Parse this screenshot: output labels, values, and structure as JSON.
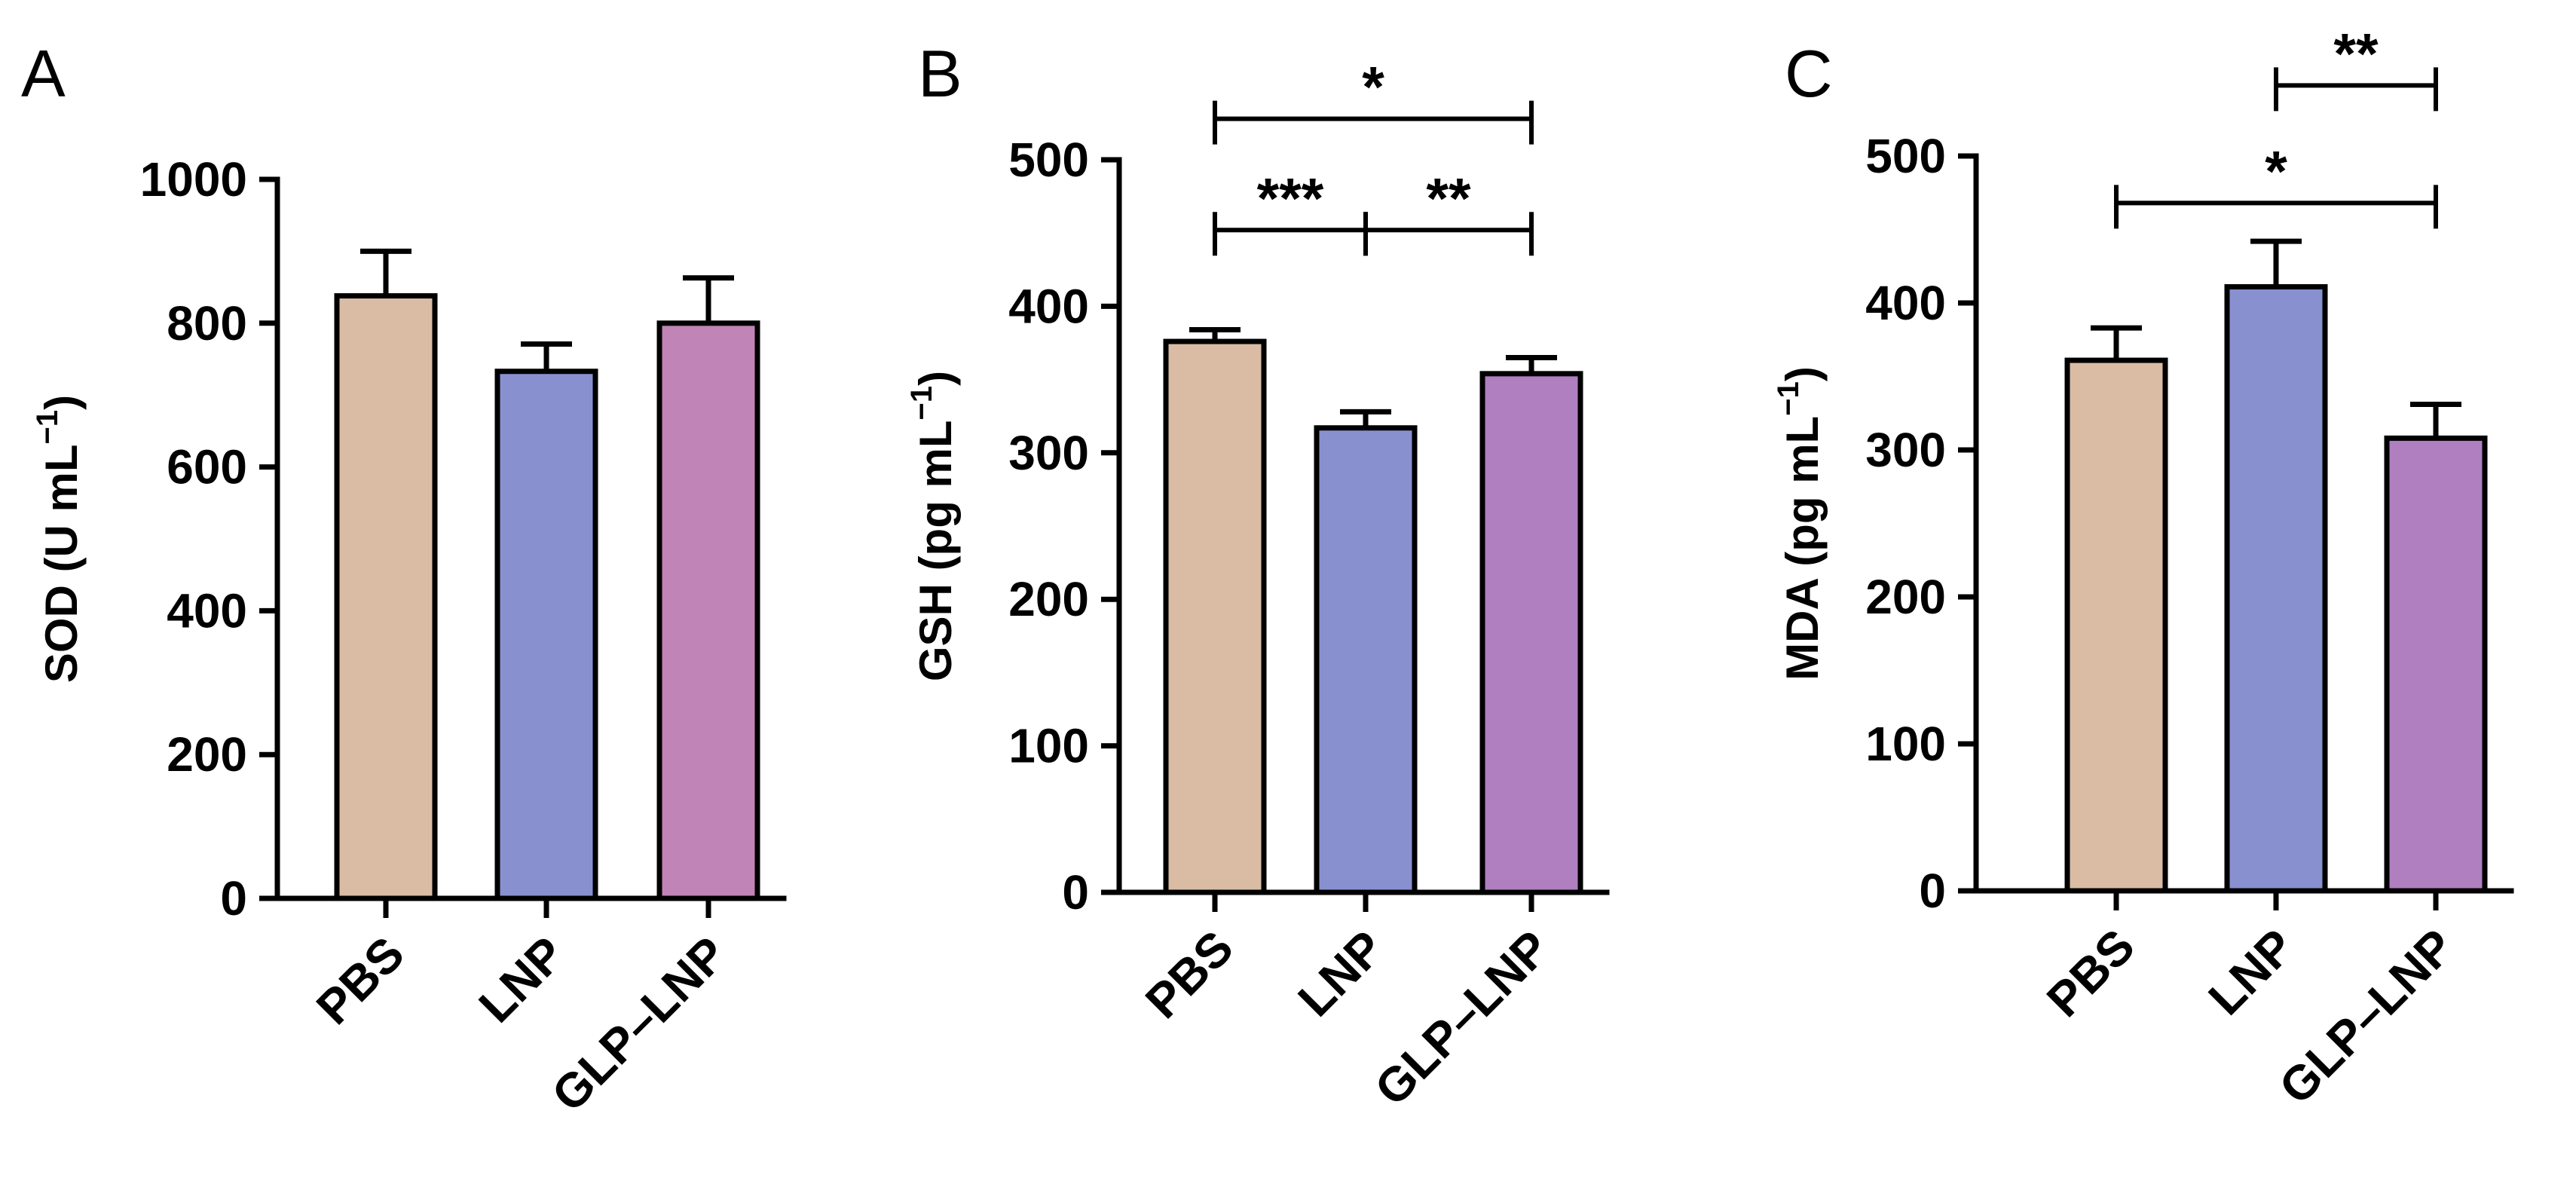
{
  "figure": {
    "background": "#ffffff"
  },
  "chart_data": [
    {
      "type": "bar",
      "panel": "A",
      "categories": [
        "PBS",
        "LNP",
        "GLP–LNP"
      ],
      "values": [
        838,
        733,
        800
      ],
      "errors": [
        62,
        38,
        63
      ],
      "colors": [
        "#d9bca3",
        "#8890d0",
        "#c084b6"
      ],
      "ylabel": "SOD (U mL",
      "ylabel_sup": "−1",
      "ylabel_close": ")",
      "ylim": [
        0,
        1000
      ],
      "yticks": [
        0,
        200,
        400,
        600,
        800,
        1000
      ],
      "significance": []
    },
    {
      "type": "bar",
      "panel": "B",
      "categories": [
        "PBS",
        "LNP",
        "GLP–LNP"
      ],
      "values": [
        376,
        317,
        354
      ],
      "errors": [
        8,
        11,
        11
      ],
      "colors": [
        "#d9bca3",
        "#8890d0",
        "#b07fbf"
      ],
      "ylabel": "GSH (pg mL",
      "ylabel_sup": "−1",
      "ylabel_close": ")",
      "ylim": [
        0,
        500
      ],
      "yticks": [
        0,
        100,
        200,
        300,
        400,
        500
      ],
      "significance": [
        {
          "from": 0,
          "to": 2,
          "label": "*",
          "level": 528
        },
        {
          "from": 0,
          "to": 1,
          "label": "***",
          "level": 452
        },
        {
          "from": 1,
          "to": 2,
          "label": "**",
          "level": 452
        }
      ]
    },
    {
      "type": "bar",
      "panel": "C",
      "categories": [
        "PBS",
        "LNP",
        "GLP–LNP"
      ],
      "values": [
        361,
        411,
        308
      ],
      "errors": [
        22,
        31,
        23
      ],
      "colors": [
        "#d9bca3",
        "#8890d0",
        "#b07fbf"
      ],
      "ylabel": "MDA (pg mL",
      "ylabel_sup": "−1",
      "ylabel_close": ")",
      "ylim": [
        0,
        500
      ],
      "yticks": [
        0,
        100,
        200,
        300,
        400,
        500
      ],
      "significance": [
        {
          "from": 1,
          "to": 2,
          "label": "**",
          "level": 548
        },
        {
          "from": 0,
          "to": 2,
          "label": "*",
          "level": 468
        }
      ]
    }
  ]
}
